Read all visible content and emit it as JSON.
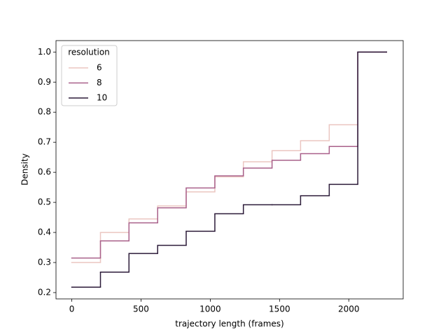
{
  "chart_data": {
    "type": "step",
    "xlabel": "trajectory length (frames)",
    "ylabel": "Density",
    "x": [
      0,
      207,
      413,
      620,
      826,
      1033,
      1239,
      1446,
      1652,
      1859,
      2065,
      2272
    ],
    "legend_title": "resolution",
    "legend": "upper left",
    "series": [
      {
        "name": "6",
        "color": "#ebc6c1",
        "values": [
          0.3,
          0.4,
          0.445,
          0.488,
          0.535,
          0.585,
          0.635,
          0.672,
          0.705,
          0.758,
          1.0,
          1.0
        ]
      },
      {
        "name": "8",
        "color": "#a9608a",
        "values": [
          0.315,
          0.372,
          0.432,
          0.482,
          0.548,
          0.588,
          0.614,
          0.64,
          0.662,
          0.686,
          1.0,
          1.0
        ]
      },
      {
        "name": "10",
        "color": "#2b1a38",
        "values": [
          0.218,
          0.268,
          0.33,
          0.357,
          0.404,
          0.462,
          0.492,
          0.492,
          0.522,
          0.56,
          1.0,
          1.0
        ]
      }
    ],
    "xlim": [
      -114,
      2393
    ],
    "ylim": [
      0.179,
      1.038
    ],
    "xticks": [
      0,
      500,
      1000,
      1500,
      2000
    ],
    "yticks": [
      0.2,
      0.3,
      0.4,
      0.5,
      0.6,
      0.7,
      0.8,
      0.9,
      {
        "value": 1,
        "label": "1.0"
      }
    ],
    "grid": false
  }
}
